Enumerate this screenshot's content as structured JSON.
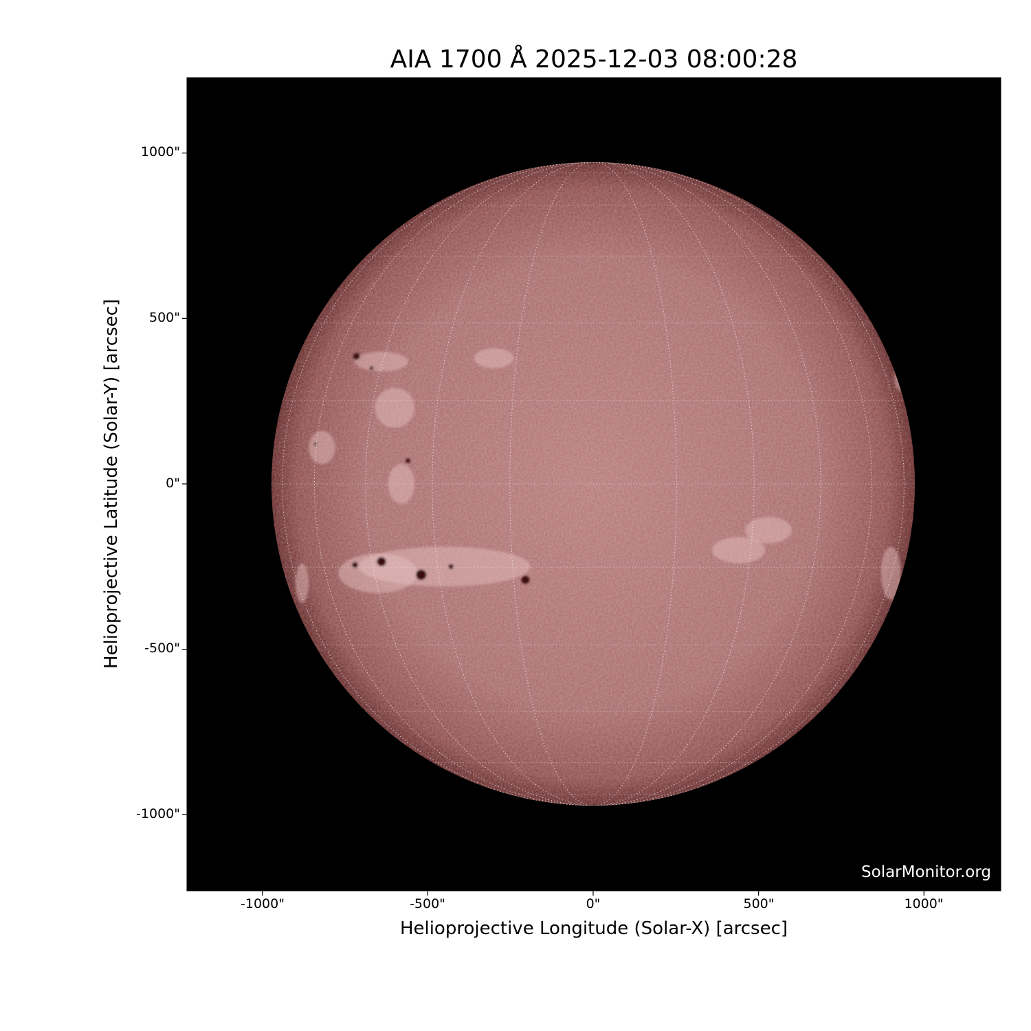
{
  "title": "AIA 1700 Å 2025-12-03 08:00:28",
  "x_axis": {
    "label": "Helioprojective Longitude (Solar-X) [arcsec]",
    "ticks": [
      "-1000\"",
      "-500\"",
      "0\"",
      "500\"",
      "1000\""
    ],
    "tick_values": [
      -1000,
      -500,
      0,
      500,
      1000
    ],
    "range": [
      -1250,
      1230
    ]
  },
  "y_axis": {
    "label": "Helioprojective Latitude (Solar-Y) [arcsec]",
    "ticks": [
      "1000\"",
      "500\"",
      "0\"",
      "-500\"",
      "-1000\""
    ],
    "tick_values": [
      1000,
      500,
      0,
      -500,
      -1000
    ],
    "range": [
      -1230,
      1230
    ]
  },
  "watermark": "SolarMonitor.org",
  "colors": {
    "background": "#000000",
    "disk_center": "#b47878",
    "disk_limb": "#5e2222",
    "plage": "#e8c4c4",
    "sunspot": "#3a0a0a",
    "grid": "#ffffff"
  },
  "solar_radius_arcsec": 973,
  "grid_spacing_deg": 15
}
